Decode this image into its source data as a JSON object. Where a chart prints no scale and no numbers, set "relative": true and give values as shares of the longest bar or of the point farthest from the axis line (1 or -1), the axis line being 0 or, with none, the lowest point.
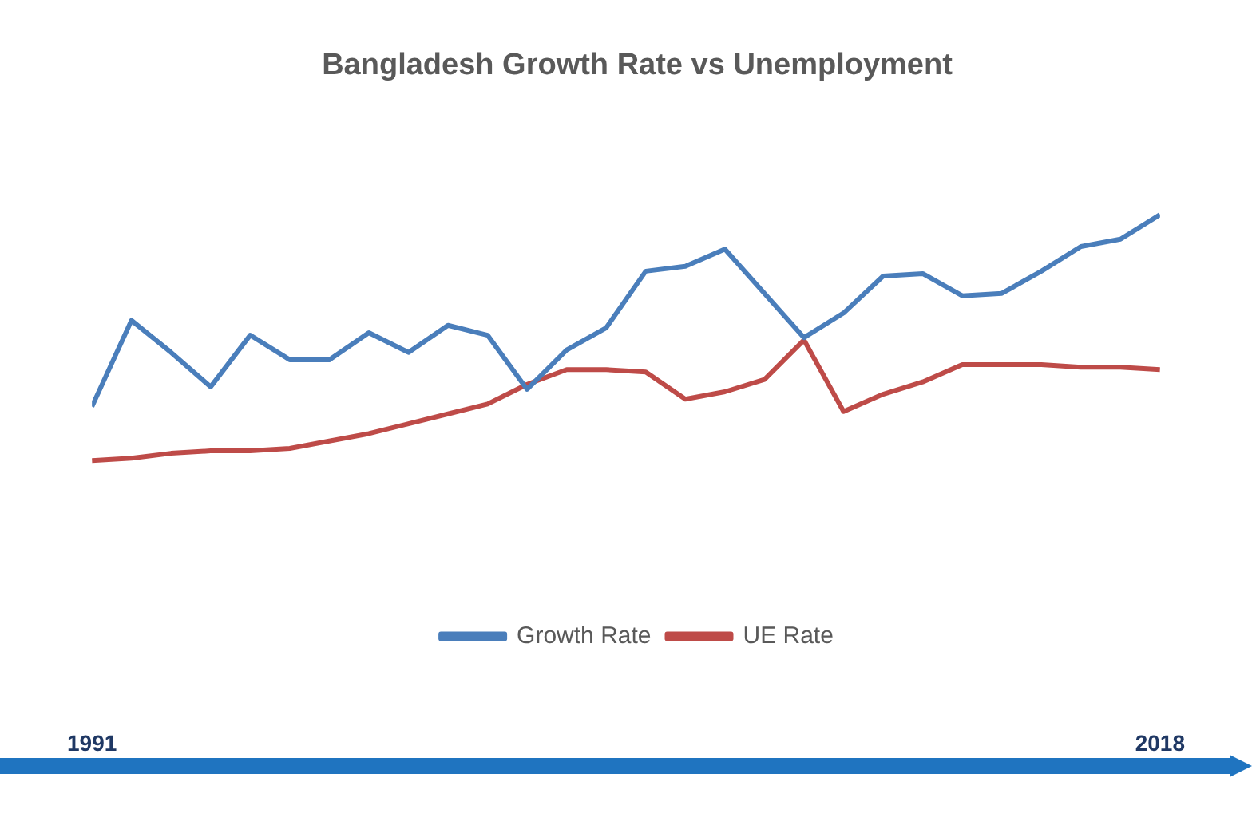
{
  "chart_data": {
    "type": "line",
    "title": "Bangladesh Growth Rate vs Unemployment",
    "relative": true,
    "legend": "bottom",
    "x": [
      1991,
      1992,
      1993,
      1994,
      1995,
      1996,
      1997,
      1998,
      1999,
      2000,
      2001,
      2002,
      2003,
      2004,
      2005,
      2006,
      2007,
      2008,
      2009,
      2010,
      2011,
      2012,
      2013,
      2014,
      2015,
      2016,
      2017,
      2018
    ],
    "xlim": [
      1991,
      2018
    ],
    "xticks": [
      1991,
      2018
    ],
    "series": [
      {
        "name": "Growth Rate",
        "color": "#4a7ebb",
        "values": [
          0.22,
          0.57,
          0.44,
          0.3,
          0.51,
          0.41,
          0.41,
          0.52,
          0.44,
          0.55,
          0.51,
          0.29,
          0.45,
          0.54,
          0.77,
          0.79,
          0.86,
          0.68,
          0.5,
          0.6,
          0.75,
          0.76,
          0.67,
          0.68,
          0.77,
          0.87,
          0.9,
          1
        ]
      },
      {
        "name": "UE Rate",
        "color": "#be4b48",
        "values": [
          0,
          0.01,
          0.03,
          0.04,
          0.04,
          0.05,
          0.08,
          0.11,
          0.15,
          0.19,
          0.23,
          0.31,
          0.37,
          0.37,
          0.36,
          0.25,
          0.28,
          0.33,
          0.49,
          0.2,
          0.27,
          0.32,
          0.39,
          0.39,
          0.39,
          0.38,
          0.38,
          0.37
        ]
      }
    ]
  }
}
